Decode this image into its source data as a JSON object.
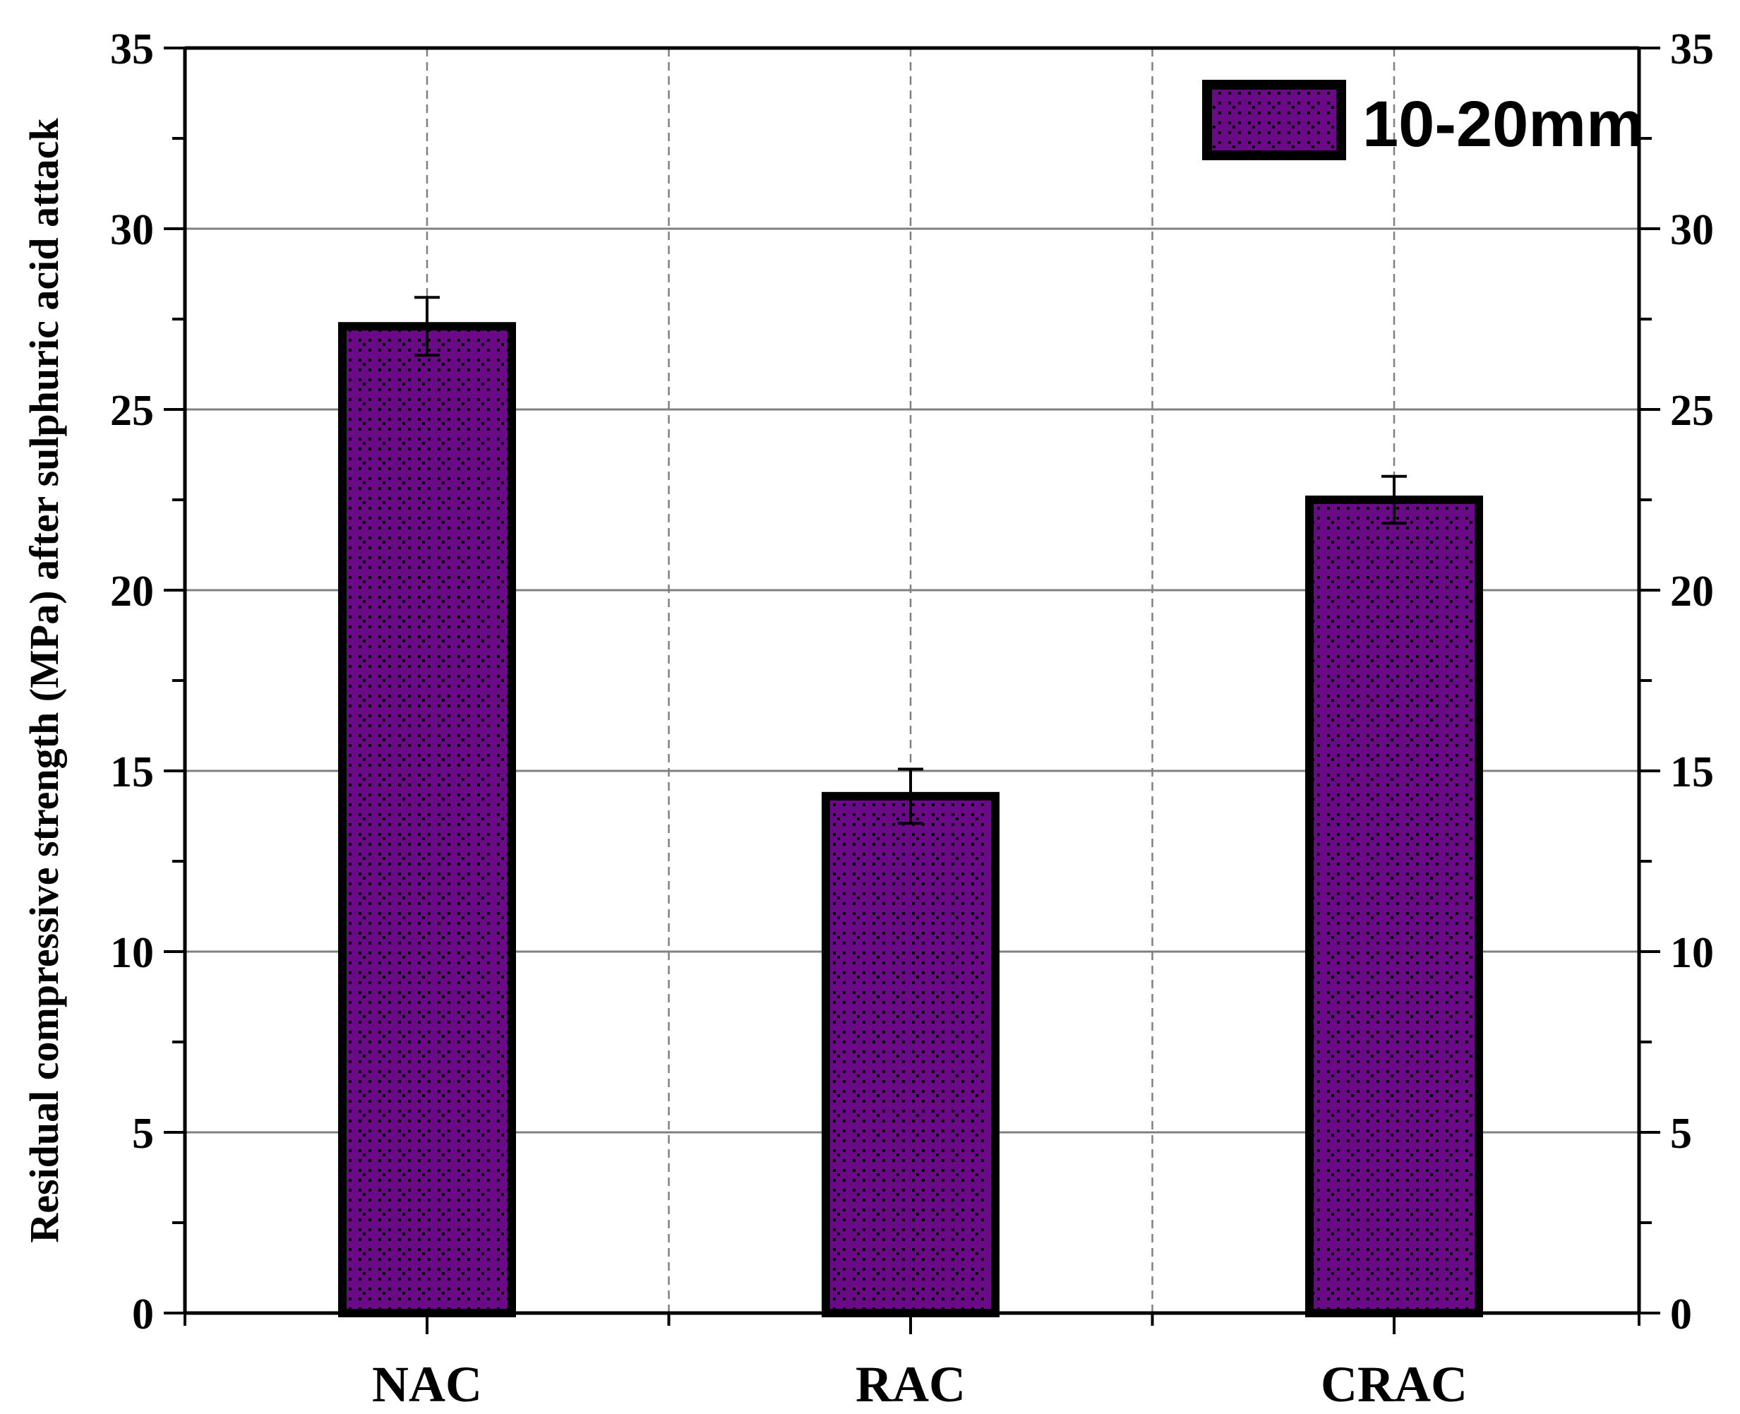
{
  "chart_data": {
    "type": "bar",
    "categories": [
      "NAC",
      "RAC",
      "CRAC"
    ],
    "series": [
      {
        "name": "10-20mm",
        "values": [
          27.3,
          14.3,
          22.5
        ],
        "errors": [
          0.8,
          0.75,
          0.65
        ]
      }
    ],
    "xlabel": "",
    "ylabel": "Residual compressive strength (MPa) after sulphuric acid attack",
    "ylim": [
      0,
      35
    ],
    "yticks": [
      "0",
      "5",
      "10",
      "15",
      "20",
      "25",
      "30",
      "35"
    ],
    "right_axis_mirrored": true,
    "grid": {
      "horizontal": "solid",
      "vertical": "dashed"
    },
    "legend_position": "top-right",
    "colors": {
      "bar_fill": "#6a0a87",
      "bar_outline": "#000000",
      "pattern_dots": "#000000",
      "gridline": "#808080"
    }
  }
}
